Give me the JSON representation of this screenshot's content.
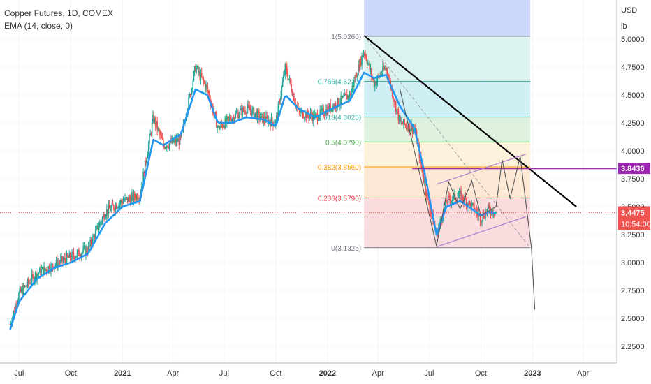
{
  "legend": {
    "title": "Copper Futures, 1D, COMEX",
    "indicator": "EMA (14, close, 0)"
  },
  "price_axis": {
    "currency": "USD",
    "unit": "lb",
    "ticks": [
      "5.0000",
      "4.7500",
      "4.5000",
      "4.2500",
      "4.0000",
      "3.7500",
      "3.5000",
      "3.2500",
      "3.0000",
      "2.7500",
      "2.5000",
      "2.2500"
    ],
    "level_label": "3.8430",
    "last_price_label": "3.4475",
    "countdown_label": "10:54:00"
  },
  "colors": {
    "candle_up": "#26a69a",
    "candle_down": "#ef5350",
    "ema": "#2196f3",
    "trendline": "#000000",
    "level_line": "#9c27b0",
    "channel": "#b084cc",
    "last_price": "#ef5350"
  },
  "chart_data": {
    "type": "line",
    "title": "Copper Futures, 1D, COMEX",
    "ylabel": "USD / lb",
    "ylim": [
      2.1,
      5.35
    ],
    "x": [
      "2020-06-15",
      "2020-07-01",
      "2020-08-01",
      "2020-09-01",
      "2020-10-01",
      "2020-11-01",
      "2020-12-01",
      "2021-01-01",
      "2021-02-01",
      "2021-02-25",
      "2021-03-15",
      "2021-04-15",
      "2021-05-11",
      "2021-06-01",
      "2021-06-20",
      "2021-07-15",
      "2021-08-10",
      "2021-09-10",
      "2021-10-01",
      "2021-10-18",
      "2021-11-10",
      "2021-12-10",
      "2022-01-10",
      "2022-02-10",
      "2022-03-07",
      "2022-03-25",
      "2022-04-15",
      "2022-05-10",
      "2022-06-05",
      "2022-06-25",
      "2022-07-14",
      "2022-08-01",
      "2022-08-25",
      "2022-09-15",
      "2022-10-01",
      "2022-10-15",
      "2022-10-28"
    ],
    "x_ticks": [
      "Jul",
      "Oct",
      "2021",
      "Apr",
      "Jul",
      "Oct",
      "2022",
      "Apr",
      "Jul",
      "Oct",
      "2023",
      "Apr"
    ],
    "series": [
      {
        "name": "Copper Futures",
        "values": [
          2.45,
          2.72,
          2.9,
          2.98,
          3.05,
          3.12,
          3.45,
          3.55,
          3.6,
          4.3,
          4.05,
          4.1,
          4.75,
          4.55,
          4.2,
          4.3,
          4.38,
          4.28,
          4.25,
          4.75,
          4.35,
          4.3,
          4.4,
          4.5,
          4.9,
          4.6,
          4.75,
          4.25,
          4.2,
          3.65,
          3.25,
          3.55,
          3.6,
          3.5,
          3.4,
          3.48,
          3.45
        ]
      },
      {
        "name": "EMA (14, close, 0)",
        "values": [
          2.4,
          2.65,
          2.85,
          2.95,
          3.0,
          3.08,
          3.35,
          3.5,
          3.55,
          4.1,
          4.05,
          4.15,
          4.55,
          4.5,
          4.25,
          4.25,
          4.3,
          4.28,
          4.22,
          4.5,
          4.38,
          4.3,
          4.38,
          4.45,
          4.7,
          4.65,
          4.68,
          4.4,
          4.2,
          3.75,
          3.25,
          3.5,
          3.55,
          3.48,
          3.42,
          3.45,
          3.44
        ]
      }
    ],
    "fibonacci": [
      {
        "label": "1(5.0260)",
        "value": 5.026,
        "color": "#787b86",
        "fill": "#e0e0e0"
      },
      {
        "label": "0.786(4.6210)",
        "value": 4.621,
        "color": "#26a69a",
        "fill": "#d6f0ec"
      },
      {
        "label": "0.618(4.3025)",
        "value": 4.3025,
        "color": "#26a69a",
        "fill": "#c8ecf2"
      },
      {
        "label": "0.5(4.0790)",
        "value": 4.079,
        "color": "#4caf50",
        "fill": "#d9f0d9"
      },
      {
        "label": "0.382(3.8560)",
        "value": 3.856,
        "color": "#ff9800",
        "fill": "#fdf0d5"
      },
      {
        "label": "0.236(3.5790)",
        "value": 3.579,
        "color": "#f23645",
        "fill": "#fde4cf"
      },
      {
        "label": "0(3.1325)",
        "value": 3.1325,
        "color": "#787b86",
        "fill": "#f9d5d8"
      }
    ],
    "horizontal_level": 3.843,
    "last_price": 3.4475,
    "grid": true,
    "legend": "top-left"
  }
}
